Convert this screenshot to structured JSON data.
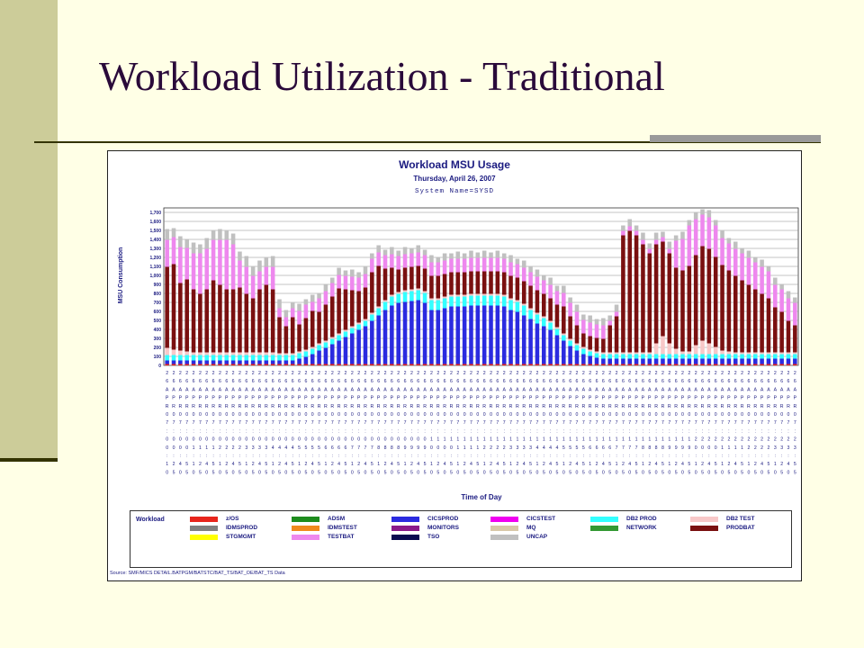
{
  "slide": {
    "title": "Workload Utilization - Traditional"
  },
  "chart_data": {
    "type": "bar",
    "stacked": true,
    "title": "Workload MSU Usage",
    "subtitle": "Thursday, April 26, 2007",
    "system_line": "System Name=SYSD",
    "xlabel": "Time of Day",
    "ylabel": "MSU Consumption",
    "ylim": [
      0,
      1750
    ],
    "yticks": [
      "0",
      "100",
      "200",
      "300",
      "400",
      "500",
      "600",
      "700",
      "800",
      "900",
      "1,000",
      "1,100",
      "1,200",
      "1,300",
      "1,400",
      "1,500",
      "1,600",
      "1,700"
    ],
    "grid": true,
    "x_label_rows": [
      "2",
      "6",
      "A",
      "P",
      "R",
      "0",
      "7",
      "",
      "0",
      "0",
      "",
      "1",
      "0"
    ],
    "x_label_sample": "26APR07:00:10",
    "legend_placement": "bottom",
    "legend_title": "Workload",
    "legend": [
      {
        "name": "z/OS",
        "color": "#E8251C"
      },
      {
        "name": "ADSM",
        "color": "#1E8C1E"
      },
      {
        "name": "CICSPROD",
        "color": "#2B2BE0"
      },
      {
        "name": "CICSTEST",
        "color": "#F000F0"
      },
      {
        "name": "DB2 PROD",
        "color": "#33FFFF"
      },
      {
        "name": "DB2 TEST",
        "color": "#F8C8C8"
      },
      {
        "name": "IDMSPROD",
        "color": "#808080"
      },
      {
        "name": "IDMSTEST",
        "color": "#F08A1E"
      },
      {
        "name": "MONITORS",
        "color": "#8B1A8B"
      },
      {
        "name": "MQ",
        "color": "#D8C8A8"
      },
      {
        "name": "NETWORK",
        "color": "#339933"
      },
      {
        "name": "PRODBAT",
        "color": "#7A1010"
      },
      {
        "name": "STGMGMT",
        "color": "#FFFF00"
      },
      {
        "name": "TESTBAT",
        "color": "#EE88EE"
      },
      {
        "name": "TSO",
        "color": "#0A0A50"
      },
      {
        "name": "UNCAP",
        "color": "#C0C0C0"
      }
    ],
    "bar_count": 96,
    "interval_minutes": 15,
    "series_estimated": [
      {
        "name": "z/OS",
        "values": [
          15,
          15,
          15,
          15,
          15,
          15,
          15,
          15,
          15,
          15,
          15,
          15,
          15,
          15,
          15,
          15,
          15,
          15,
          15,
          15,
          15,
          15,
          15,
          15,
          15,
          15,
          15,
          15,
          15,
          15,
          15,
          15,
          15,
          15,
          15,
          15,
          15,
          15,
          15,
          15,
          15,
          15,
          15,
          15,
          15,
          15,
          15,
          15,
          15,
          15,
          15,
          15,
          15,
          15,
          15,
          15,
          15,
          15,
          15,
          15,
          15,
          15,
          15,
          15,
          15,
          15,
          15,
          15,
          15,
          15,
          15,
          15,
          15,
          15,
          15,
          15,
          15,
          15,
          15,
          15,
          15,
          15,
          15,
          15,
          15,
          15,
          15,
          15,
          15,
          15,
          15,
          15,
          15,
          15,
          15,
          15
        ]
      },
      {
        "name": "CICSPROD",
        "values": [
          40,
          40,
          40,
          40,
          40,
          40,
          40,
          40,
          40,
          40,
          40,
          40,
          40,
          40,
          40,
          40,
          40,
          40,
          40,
          40,
          60,
          80,
          110,
          150,
          180,
          220,
          260,
          300,
          340,
          380,
          420,
          480,
          540,
          600,
          650,
          680,
          690,
          700,
          710,
          680,
          600,
          600,
          620,
          640,
          640,
          640,
          650,
          650,
          650,
          650,
          650,
          640,
          600,
          580,
          540,
          500,
          450,
          420,
          380,
          320,
          260,
          200,
          150,
          110,
          90,
          70,
          60,
          60,
          60,
          60,
          60,
          60,
          60,
          60,
          60,
          60,
          60,
          60,
          60,
          60,
          60,
          60,
          60,
          60,
          60,
          60,
          60,
          60,
          60,
          60,
          60,
          60,
          60,
          60,
          60,
          60
        ]
      },
      {
        "name": "DB2 PROD",
        "values": [
          60,
          60,
          60,
          60,
          60,
          60,
          60,
          60,
          60,
          60,
          60,
          60,
          60,
          60,
          60,
          60,
          60,
          60,
          60,
          60,
          60,
          60,
          60,
          60,
          60,
          60,
          60,
          60,
          60,
          60,
          60,
          70,
          80,
          90,
          100,
          100,
          110,
          110,
          110,
          110,
          110,
          110,
          110,
          110,
          110,
          110,
          110,
          110,
          110,
          110,
          110,
          110,
          110,
          110,
          110,
          100,
          100,
          90,
          80,
          70,
          60,
          60,
          60,
          60,
          50,
          50,
          50,
          50,
          50,
          50,
          50,
          50,
          50,
          50,
          50,
          50,
          50,
          50,
          50,
          50,
          50,
          50,
          50,
          50,
          50,
          50,
          50,
          50,
          50,
          50,
          50,
          50,
          50,
          50,
          50,
          50
        ]
      },
      {
        "name": "DB2 TEST",
        "values": [
          80,
          60,
          50,
          40,
          30,
          30,
          30,
          30,
          30,
          30,
          30,
          30,
          30,
          30,
          30,
          30,
          30,
          20,
          20,
          20,
          20,
          20,
          20,
          20,
          20,
          20,
          20,
          20,
          20,
          20,
          20,
          20,
          20,
          20,
          20,
          20,
          20,
          20,
          20,
          20,
          20,
          20,
          20,
          20,
          20,
          20,
          20,
          20,
          20,
          20,
          20,
          20,
          20,
          20,
          20,
          20,
          20,
          20,
          20,
          20,
          20,
          20,
          20,
          20,
          20,
          20,
          20,
          20,
          20,
          20,
          20,
          20,
          20,
          20,
          120,
          200,
          120,
          60,
          30,
          30,
          100,
          150,
          120,
          80,
          40,
          30,
          20,
          20,
          20,
          20,
          20,
          20,
          20,
          20,
          20,
          20
        ]
      },
      {
        "name": "PRODBAT",
        "values": [
          900,
          950,
          750,
          800,
          700,
          650,
          700,
          800,
          750,
          700,
          700,
          720,
          650,
          600,
          700,
          750,
          700,
          400,
          300,
          400,
          300,
          350,
          400,
          350,
          400,
          450,
          500,
          450,
          400,
          350,
          350,
          450,
          450,
          350,
          300,
          250,
          250,
          250,
          250,
          250,
          250,
          250,
          250,
          250,
          250,
          250,
          250,
          250,
          250,
          250,
          250,
          250,
          250,
          250,
          250,
          250,
          250,
          250,
          250,
          250,
          300,
          250,
          200,
          150,
          150,
          150,
          150,
          300,
          400,
          1300,
          1350,
          1300,
          1200,
          1100,
          1100,
          1050,
          1000,
          900,
          900,
          950,
          1000,
          1050,
          1050,
          1000,
          950,
          900,
          850,
          800,
          750,
          700,
          650,
          600,
          500,
          450,
          350,
          300
        ]
      },
      {
        "name": "TESTBAT",
        "values": [
          300,
          300,
          400,
          350,
          400,
          450,
          450,
          450,
          500,
          550,
          500,
          300,
          300,
          250,
          200,
          200,
          250,
          100,
          100,
          100,
          150,
          150,
          100,
          150,
          150,
          150,
          150,
          150,
          150,
          150,
          150,
          150,
          150,
          150,
          150,
          150,
          150,
          150,
          150,
          150,
          150,
          150,
          150,
          150,
          150,
          150,
          150,
          150,
          150,
          150,
          150,
          150,
          150,
          150,
          150,
          150,
          150,
          150,
          150,
          150,
          150,
          150,
          150,
          150,
          150,
          150,
          150,
          50,
          50,
          50,
          50,
          50,
          50,
          50,
          50,
          50,
          50,
          300,
          350,
          450,
          400,
          350,
          350,
          350,
          300,
          300,
          300,
          300,
          300,
          300,
          300,
          300,
          250,
          250,
          250,
          250
        ]
      },
      {
        "name": "UNCAP",
        "values": [
          120,
          100,
          120,
          100,
          120,
          100,
          120,
          100,
          120,
          100,
          120,
          100,
          120,
          100,
          120,
          100,
          120,
          100,
          80,
          60,
          80,
          60,
          80,
          60,
          80,
          60,
          80,
          60,
          80,
          60,
          80,
          60,
          80,
          60,
          80,
          60,
          80,
          60,
          80,
          60,
          80,
          60,
          80,
          60,
          80,
          60,
          80,
          60,
          80,
          60,
          80,
          60,
          80,
          60,
          80,
          60,
          80,
          60,
          80,
          60,
          80,
          60,
          80,
          60,
          80,
          60,
          80,
          60,
          80,
          60,
          80,
          60,
          80,
          60,
          80,
          60,
          80,
          60,
          80,
          60,
          80,
          60,
          80,
          60,
          80,
          60,
          80,
          60,
          80,
          60,
          80,
          60,
          80,
          60,
          80,
          60
        ]
      }
    ],
    "source_note": "Source: SMF/MICS DETAIL.BATPGM/BATSTC/BAT_TS/BAT_OE/BAT_TS Data"
  }
}
